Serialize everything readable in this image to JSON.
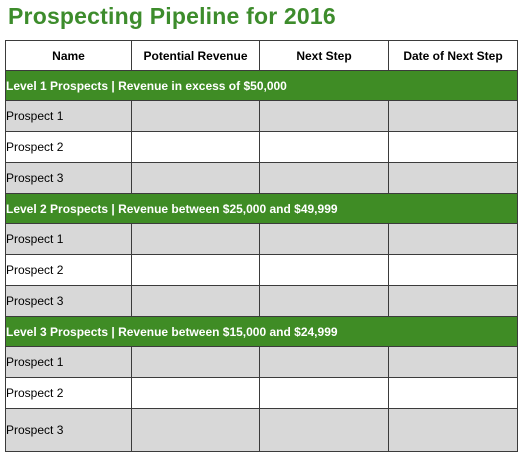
{
  "title": "Prospecting Pipeline for 2016",
  "columns": [
    "Name",
    "Potential Revenue",
    "Next Step",
    "Date of Next Step"
  ],
  "sections": [
    {
      "label": "Level 1 Prospects | Revenue in excess of $50,000",
      "rows": [
        "Prospect 1",
        "Prospect 2",
        "Prospect 3"
      ]
    },
    {
      "label": "Level 2 Prospects | Revenue between $25,000 and $49,999",
      "rows": [
        "Prospect 1",
        "Prospect 2",
        "Prospect 3"
      ]
    },
    {
      "label": "Level 3 Prospects | Revenue between $15,000 and $24,999",
      "rows": [
        "Prospect 1",
        "Prospect 2",
        "Prospect 3"
      ]
    }
  ]
}
